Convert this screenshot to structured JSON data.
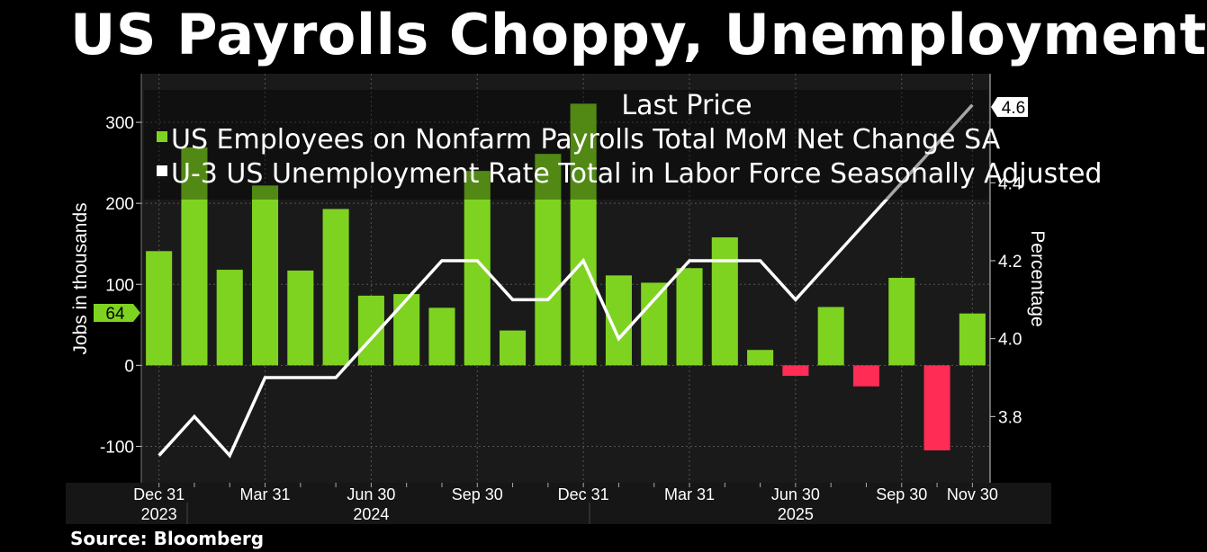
{
  "title": "US Payrolls Choppy, Unemployment",
  "source": "Source: Bloomberg",
  "colors": {
    "background": "#000000",
    "plot_background": "#1a1a1a",
    "grid": "#555555",
    "positive_bar": "#7ed321",
    "negative_bar": "#ff2d55",
    "line": "#ffffff"
  },
  "chart_data": {
    "type": "bar",
    "legend_header": "Last Price",
    "legend_position": "top-right",
    "grid": true,
    "x": [
      "2023-12",
      "2024-01",
      "2024-02",
      "2024-03",
      "2024-04",
      "2024-05",
      "2024-06",
      "2024-07",
      "2024-08",
      "2024-09",
      "2024-10",
      "2024-11",
      "2024-12",
      "2025-01",
      "2025-02",
      "2025-03",
      "2025-04",
      "2025-05",
      "2025-06",
      "2025-07",
      "2025-08",
      "2025-09",
      "2025-10",
      "2025-11"
    ],
    "x_tick_labels": [
      "Dec 31",
      "Mar 31",
      "Jun 30",
      "Sep 30",
      "Dec 31",
      "Mar 31",
      "Jun 30",
      "Sep 30",
      "Nov 30"
    ],
    "x_tick_positions": [
      "2023-12",
      "2024-03",
      "2024-06",
      "2024-09",
      "2024-12",
      "2025-03",
      "2025-06",
      "2025-09",
      "2025-11"
    ],
    "year_labels": [
      "2023",
      "2024",
      "2025"
    ],
    "year_label_positions": [
      "2023-12",
      "2024-06",
      "2025-06"
    ],
    "series": [
      {
        "name": "US Employees on Nonfarm Payrolls Total MoM Net Change SA",
        "axis": "left",
        "type": "bar",
        "values": [
          141,
          269,
          118,
          222,
          117,
          193,
          86,
          88,
          71,
          240,
          43,
          261,
          323,
          111,
          102,
          120,
          158,
          19,
          -13,
          72,
          -26,
          108,
          -105,
          64
        ]
      },
      {
        "name": "U-3 US Unemployment Rate Total in Labor Force Seasonally Adjusted",
        "axis": "right",
        "type": "line",
        "values": [
          3.7,
          3.8,
          3.7,
          3.9,
          3.9,
          3.9,
          4.0,
          4.1,
          4.2,
          4.2,
          4.1,
          4.1,
          4.2,
          4.0,
          4.1,
          4.2,
          4.2,
          4.2,
          4.1,
          4.2,
          4.3,
          4.4,
          4.5,
          4.6
        ]
      }
    ],
    "left_axis": {
      "label": "Jobs in thousands",
      "ylim": [
        -145,
        360
      ],
      "ticks": [
        -100,
        0,
        100,
        200,
        300
      ]
    },
    "right_axis": {
      "label": "Percentage",
      "ylim": [
        3.63,
        4.68
      ],
      "ticks": [
        3.8,
        4.0,
        4.2,
        4.4
      ]
    },
    "last_value_tags": {
      "left": "64",
      "right": "4.6"
    }
  }
}
